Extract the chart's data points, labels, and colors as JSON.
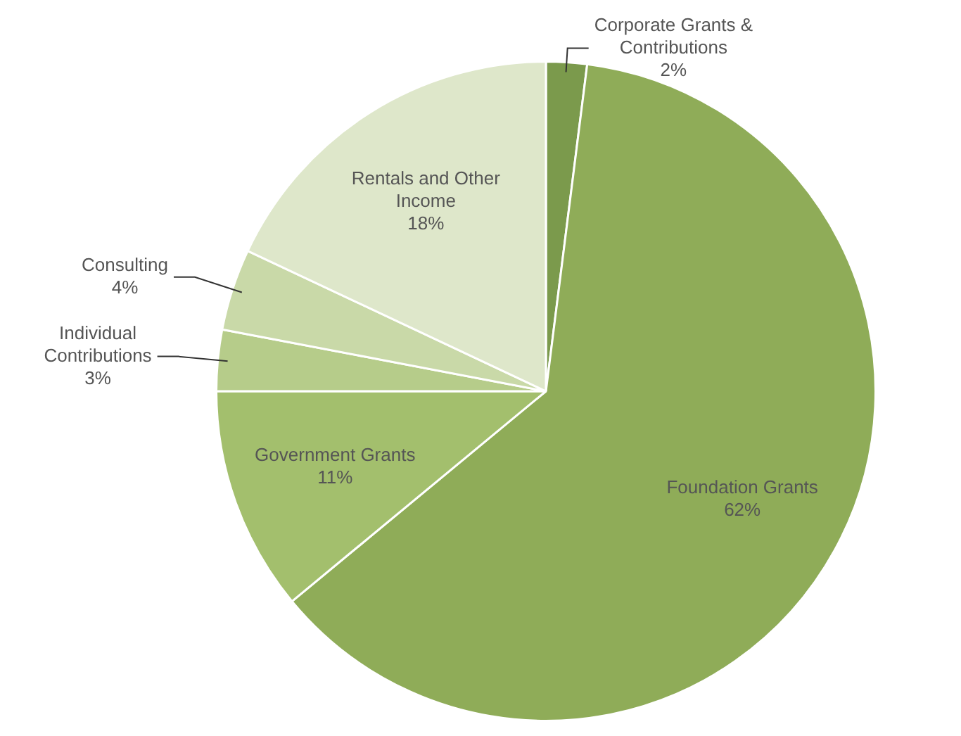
{
  "chart_data": {
    "type": "pie",
    "categories": [
      "Corporate Grants & Contributions",
      "Foundation Grants",
      "Government Grants",
      "Individual Contributions",
      "Consulting",
      "Rentals and Other Income"
    ],
    "values": [
      2,
      62,
      11,
      3,
      4,
      18
    ],
    "value_labels": [
      "2%",
      "62%",
      "11%",
      "3%",
      "4%",
      "18%"
    ],
    "colors": [
      "#7b9a4c",
      "#8fac58",
      "#a3bf6d",
      "#b6cc8a",
      "#c9d9a8",
      "#dee7ca"
    ],
    "legend": false
  }
}
